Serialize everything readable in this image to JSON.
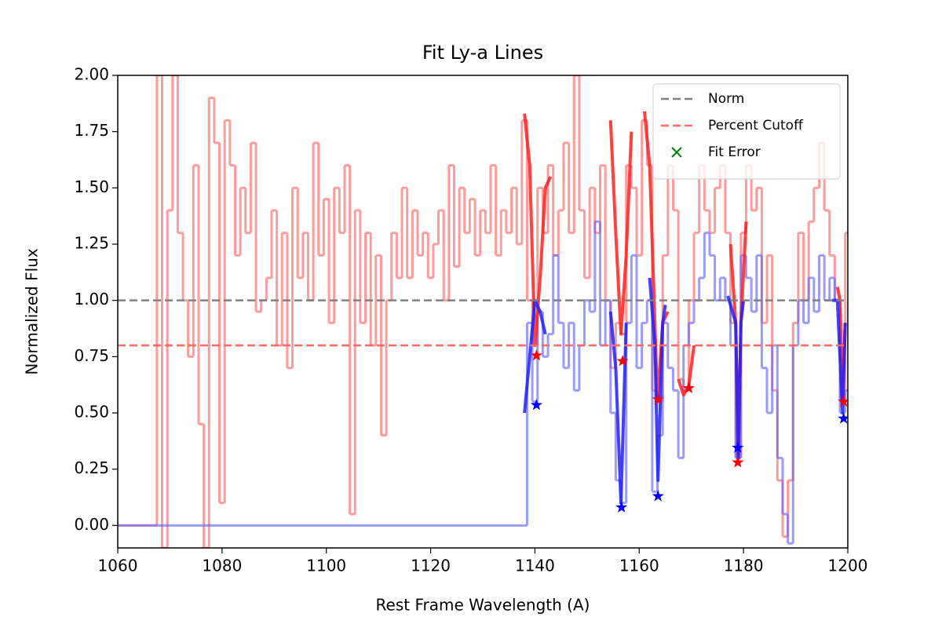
{
  "chart_data": {
    "type": "line",
    "title": "Fit Ly-a Lines",
    "x_label": "Rest Frame Wavelength (A)",
    "y_label": "Normalized Flux",
    "xlim": [
      1060,
      1200
    ],
    "ylim": [
      -0.1,
      2.0
    ],
    "xticks": [
      1060,
      1080,
      1100,
      1120,
      1140,
      1160,
      1180,
      1200
    ],
    "yticks": [
      {
        "value": 0,
        "label": "0.00"
      },
      0.25,
      {
        "value": 0.5,
        "label": "0.50"
      },
      0.75,
      {
        "value": 1,
        "label": "1.00"
      },
      1.25,
      {
        "value": 1.5,
        "label": "1.50"
      },
      1.75,
      {
        "value": 2,
        "label": "2.00"
      }
    ],
    "legend": "upper right",
    "hlines": [
      {
        "name": "Norm",
        "value": 1.0,
        "color": "#808080"
      },
      {
        "name": "Percent Cutoff",
        "value": 0.8,
        "color": "#ff6666"
      }
    ],
    "series": [
      {
        "style": "step",
        "color": "#ff6666",
        "alpha": 0.65,
        "x": [
          1060,
          1061,
          1062,
          1063,
          1064,
          1065,
          1066,
          1067,
          1068,
          1069,
          1070,
          1071,
          1072,
          1073,
          1074,
          1075,
          1076,
          1077,
          1078,
          1079,
          1080,
          1081,
          1082,
          1083,
          1084,
          1085,
          1086,
          1087,
          1088,
          1089,
          1090,
          1091,
          1092,
          1093,
          1094,
          1095,
          1096,
          1097,
          1098,
          1099,
          1100,
          1101,
          1102,
          1103,
          1104,
          1105,
          1106,
          1107,
          1108,
          1109,
          1110,
          1111,
          1112,
          1113,
          1114,
          1115,
          1116,
          1117,
          1118,
          1119,
          1120,
          1121,
          1122,
          1123,
          1124,
          1125,
          1126,
          1127,
          1128,
          1129,
          1130,
          1131,
          1132,
          1133,
          1134,
          1135,
          1136,
          1137,
          1138,
          1139,
          1140,
          1141,
          1142,
          1143,
          1144,
          1145,
          1146,
          1147,
          1148,
          1149,
          1150,
          1151,
          1152,
          1153,
          1154,
          1155,
          1156,
          1157,
          1158,
          1159,
          1160,
          1161,
          1162,
          1163,
          1164,
          1165,
          1166,
          1167,
          1168,
          1169,
          1170,
          1171,
          1172,
          1173,
          1174,
          1175,
          1176,
          1177,
          1178,
          1179,
          1180,
          1181,
          1182,
          1183,
          1184,
          1185,
          1186,
          1187,
          1188,
          1189,
          1190,
          1191,
          1192,
          1193,
          1194,
          1195,
          1196,
          1197,
          1198,
          1199,
          1200
        ],
        "values": [
          0,
          0,
          0,
          0,
          0,
          0,
          0,
          0,
          2.0,
          -0.1,
          1.4,
          2.0,
          1.3,
          1.0,
          0.75,
          1.6,
          0.45,
          -0.1,
          1.9,
          1.7,
          0.1,
          1.8,
          1.6,
          1.2,
          1.5,
          1.3,
          1.7,
          0.95,
          1.0,
          1.1,
          1.4,
          0.8,
          1.3,
          0.7,
          1.5,
          1.1,
          1.3,
          1.0,
          1.7,
          1.2,
          1.45,
          0.9,
          1.5,
          1.3,
          1.6,
          0.05,
          1.4,
          0.9,
          1.3,
          0.8,
          1.2,
          0.4,
          1.0,
          1.3,
          1.1,
          1.5,
          1.1,
          1.4,
          1.2,
          1.3,
          1.1,
          1.25,
          1.4,
          1.0,
          1.6,
          1.15,
          1.5,
          1.3,
          1.45,
          1.2,
          1.4,
          1.3,
          1.6,
          1.2,
          1.4,
          1.3,
          1.5,
          1.25,
          1.8,
          1.0,
          0.8,
          1.5,
          1.3,
          1.6,
          1.2,
          1.4,
          1.7,
          1.3,
          2.0,
          1.4,
          1.1,
          1.5,
          1.3,
          1.6,
          1.0,
          0.7,
          0.9,
          0.85,
          1.6,
          1.5,
          1.2,
          1.8,
          1.6,
          0.6,
          0.55,
          1.2,
          1.6,
          1.4,
          0.65,
          0.6,
          1.0,
          1.3,
          1.6,
          1.4,
          1.3,
          1.5,
          1.6,
          1.3,
          0.9,
          0.3,
          1.3,
          1.6,
          1.4,
          1.5,
          0.9,
          1.2,
          0.6,
          0.2,
          -0.05,
          0.2,
          0.9,
          1.3,
          1.0,
          1.35,
          1.5,
          1.7,
          1.4,
          1.2,
          1.0,
          0.55,
          1.3
        ]
      },
      {
        "style": "step",
        "color": "#6666ff",
        "alpha": 0.65,
        "x": [
          1060,
          1138,
          1139,
          1140,
          1141,
          1142,
          1143,
          1144,
          1145,
          1146,
          1147,
          1148,
          1149,
          1150,
          1151,
          1152,
          1153,
          1154,
          1155,
          1156,
          1157,
          1158,
          1159,
          1160,
          1161,
          1162,
          1163,
          1164,
          1165,
          1166,
          1167,
          1168,
          1169,
          1170,
          1171,
          1172,
          1173,
          1174,
          1175,
          1176,
          1177,
          1178,
          1179,
          1180,
          1181,
          1182,
          1183,
          1184,
          1185,
          1186,
          1187,
          1188,
          1189,
          1190,
          1191,
          1192,
          1193,
          1194,
          1195,
          1196,
          1197,
          1198,
          1199,
          1200
        ],
        "values": [
          0,
          0,
          0.9,
          0.55,
          0.95,
          0.75,
          0.85,
          1.2,
          0.9,
          0.7,
          0.9,
          0.6,
          0.8,
          1.0,
          0.95,
          1.35,
          0.8,
          1.0,
          0.5,
          0.2,
          0.1,
          0.9,
          1.2,
          0.7,
          0.9,
          1.0,
          0.15,
          0.4,
          0.9,
          0.7,
          0.6,
          0.3,
          0.8,
          0.9,
          1.0,
          1.1,
          1.3,
          1.2,
          1.0,
          1.1,
          1.0,
          0.8,
          0.3,
          1.2,
          1.1,
          0.95,
          1.2,
          0.7,
          0.5,
          0.8,
          0.3,
          0.05,
          -0.08,
          0.8,
          1.0,
          0.9,
          1.1,
          0.95,
          1.2,
          1.0,
          1.1,
          1.0,
          0.5,
          0.6
        ]
      },
      {
        "style": "fit",
        "color": "#ff2020",
        "x": [
          1138,
          1139,
          1140,
          1141,
          1142,
          1143
        ],
        "values": [
          1.83,
          1.6,
          0.8,
          1.1,
          1.5,
          1.55
        ]
      },
      {
        "style": "fit",
        "color": "#ff2020",
        "x": [
          1154.5,
          1155.5,
          1156.5,
          1157.5,
          1158.5
        ],
        "values": [
          1.8,
          1.3,
          0.85,
          1.2,
          1.75
        ]
      },
      {
        "style": "fit",
        "color": "#ff2020",
        "x": [
          1161,
          1162,
          1163,
          1163.5,
          1164.5,
          1165.5
        ],
        "values": [
          1.84,
          1.6,
          0.9,
          0.55,
          0.9,
          0.95
        ]
      },
      {
        "style": "fit",
        "color": "#ff2020",
        "x": [
          1167.5,
          1168.5,
          1169.5,
          1170.5
        ],
        "values": [
          0.65,
          0.58,
          0.62,
          0.8
        ]
      },
      {
        "style": "fit",
        "color": "#ff2020",
        "x": [
          1177.5,
          1178.5,
          1179,
          1179.5,
          1180.5
        ],
        "values": [
          1.25,
          0.9,
          0.3,
          0.9,
          1.35
        ]
      },
      {
        "style": "fit",
        "color": "#ff2020",
        "x": [
          1198,
          1198.5,
          1199,
          1199.5
        ],
        "values": [
          1.06,
          1.0,
          0.55,
          0.9
        ]
      },
      {
        "style": "fit",
        "color": "#2020ff",
        "x": [
          1138,
          1139,
          1140,
          1141,
          1142
        ],
        "values": [
          0.5,
          0.75,
          1.0,
          0.95,
          0.85
        ]
      },
      {
        "style": "fit",
        "color": "#2020ff",
        "x": [
          1154.5,
          1155.5,
          1156.5,
          1157.5
        ],
        "values": [
          0.95,
          0.7,
          0.1,
          0.9
        ]
      },
      {
        "style": "fit",
        "color": "#2020ff",
        "x": [
          1162,
          1163,
          1163.6,
          1164.5,
          1165
        ],
        "values": [
          1.1,
          0.8,
          0.2,
          0.9,
          0.98
        ]
      },
      {
        "style": "fit",
        "color": "#2020ff",
        "x": [
          1177,
          1178.5,
          1179,
          1179.5,
          1180
        ],
        "values": [
          1.02,
          0.9,
          0.3,
          0.9,
          1.0
        ]
      },
      {
        "style": "fit",
        "color": "#2020ff",
        "x": [
          1197,
          1198,
          1199,
          1199.5
        ],
        "values": [
          1.0,
          1.0,
          0.5,
          0.9
        ]
      },
      {
        "style": "marker",
        "marker": "star",
        "color": "#ff0000",
        "x": [
          1140.3,
          1156.8,
          1163.6,
          1169.5,
          1178.9,
          1199.2
        ],
        "values": [
          0.755,
          0.73,
          0.56,
          0.61,
          0.28,
          0.55
        ]
      },
      {
        "style": "marker",
        "marker": "star",
        "color": "#0000ff",
        "x": [
          1140.3,
          1156.6,
          1163.6,
          1178.9,
          1199.2
        ],
        "values": [
          0.535,
          0.08,
          0.13,
          0.345,
          0.475
        ]
      },
      {
        "style": "marker",
        "marker": "x",
        "name": "Fit Error",
        "color": "#008000",
        "x": [],
        "values": []
      }
    ]
  }
}
